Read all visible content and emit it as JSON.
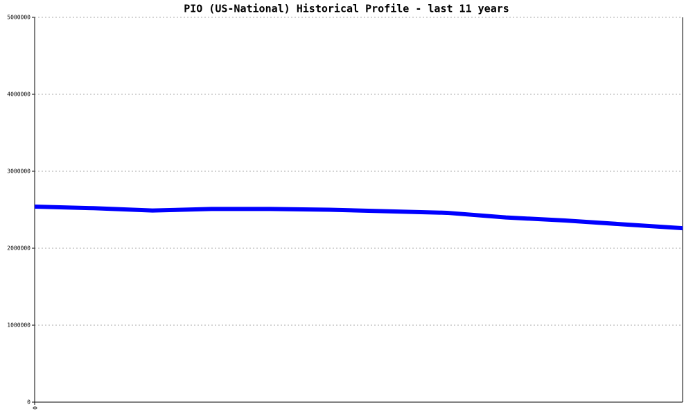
{
  "chart_data": {
    "type": "line",
    "title": "PIO (US-National) Historical Profile - last 11 years",
    "categories": [
      "0",
      null,
      null,
      null,
      null,
      null,
      null,
      null,
      null,
      null,
      null,
      null
    ],
    "series": [
      {
        "name": "PIO",
        "color": "#0000ff",
        "values": [
          2540000,
          2520000,
          2490000,
          2510000,
          2510000,
          2500000,
          2480000,
          2460000,
          2400000,
          2360000,
          2310000,
          2260000
        ]
      }
    ],
    "ylim": [
      0,
      5000000
    ],
    "yticks": [
      0,
      1000000,
      2000000,
      3000000,
      4000000,
      5000000
    ],
    "grid": true
  }
}
